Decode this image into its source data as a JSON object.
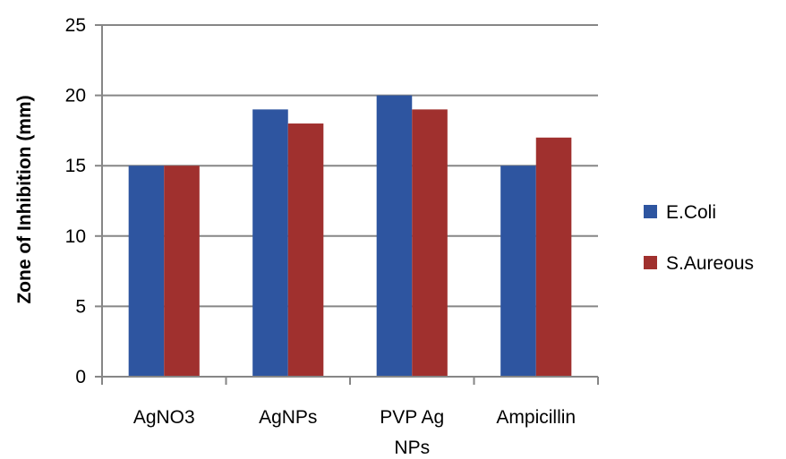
{
  "chart_data": {
    "type": "bar",
    "title": "",
    "xlabel": "",
    "ylabel": "Zone of Inhibition (mm)",
    "ylim": [
      0,
      25
    ],
    "yticks": [
      0,
      5,
      10,
      15,
      20,
      25
    ],
    "categories": [
      [
        "AgNO3"
      ],
      [
        "AgNPs"
      ],
      [
        "PVP Ag",
        "NPs"
      ],
      [
        "Ampicillin"
      ]
    ],
    "series": [
      {
        "name": "E.Coli",
        "color": "#2E55A0",
        "values": [
          15,
          19,
          20,
          15
        ]
      },
      {
        "name": "S.Aureous",
        "color": "#A0302E",
        "values": [
          15,
          18,
          19,
          17
        ]
      }
    ],
    "grid": true,
    "legend_position": "right"
  }
}
